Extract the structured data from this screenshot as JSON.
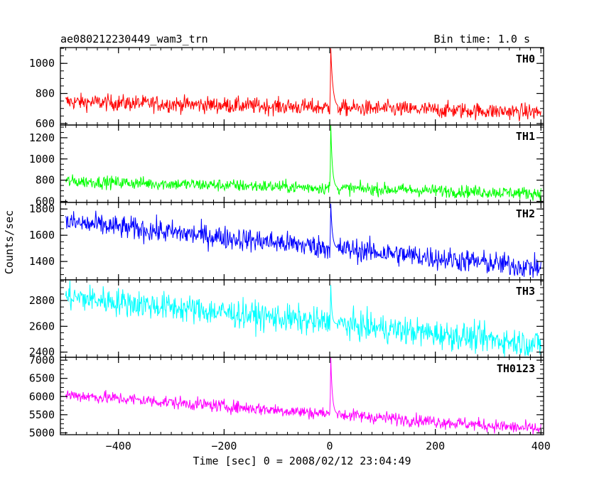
{
  "header": {
    "title": "ae080212230449_wam3_trn",
    "bin_time": "Bin time: 1.0 s"
  },
  "chart_data": {
    "type": "line",
    "xlabel": "Time [sec] 0 = 2008/02/12 23:04:49",
    "ylabel": "Counts/sec",
    "xlim": [
      -510,
      405
    ],
    "x_ticks": [
      -400,
      -200,
      0,
      200,
      400
    ],
    "x_tick_labels": [
      "−400",
      "−200",
      "0",
      "200",
      "400"
    ],
    "x_start": -500,
    "x_end": 400,
    "bin_seconds": 1.0,
    "panels": [
      {
        "name": "TH0",
        "color": "#ff0000",
        "ylim": [
          590,
          1105
        ],
        "y_ticks": [
          600,
          800,
          1000
        ],
        "start_mean": 745,
        "end_mean": 675,
        "noise": 55,
        "peak_x": 2,
        "peak_value": 1100,
        "peak_decay": 4
      },
      {
        "name": "TH1",
        "color": "#00ff00",
        "ylim": [
          590,
          1320
        ],
        "y_ticks": [
          600,
          800,
          1000,
          1200
        ],
        "start_mean": 790,
        "end_mean": 675,
        "noise": 60,
        "peak_x": 2,
        "peak_value": 1320,
        "peak_decay": 3
      },
      {
        "name": "TH2",
        "color": "#0000ff",
        "ylim": [
          1260,
          1850
        ],
        "y_ticks": [
          1400,
          1600,
          1800
        ],
        "start_mean": 1700,
        "end_mean": 1350,
        "noise": 90,
        "peak_x": 2,
        "peak_value": 1840,
        "peak_decay": 3
      },
      {
        "name": "TH3",
        "color": "#00ffff",
        "ylim": [
          2360,
          2960
        ],
        "y_ticks": [
          2400,
          2600,
          2800
        ],
        "start_mean": 2830,
        "end_mean": 2460,
        "noise": 110,
        "peak_x": 2,
        "peak_value": 2920,
        "peak_decay": 2
      },
      {
        "name": "TH0123",
        "color": "#ff00ff",
        "ylim": [
          4950,
          7080
        ],
        "y_ticks": [
          5000,
          5500,
          6000,
          6500,
          7000
        ],
        "start_mean": 6050,
        "end_mean": 5100,
        "noise": 180,
        "peak_x": 2,
        "peak_value": 7080,
        "peak_decay": 3
      }
    ]
  }
}
